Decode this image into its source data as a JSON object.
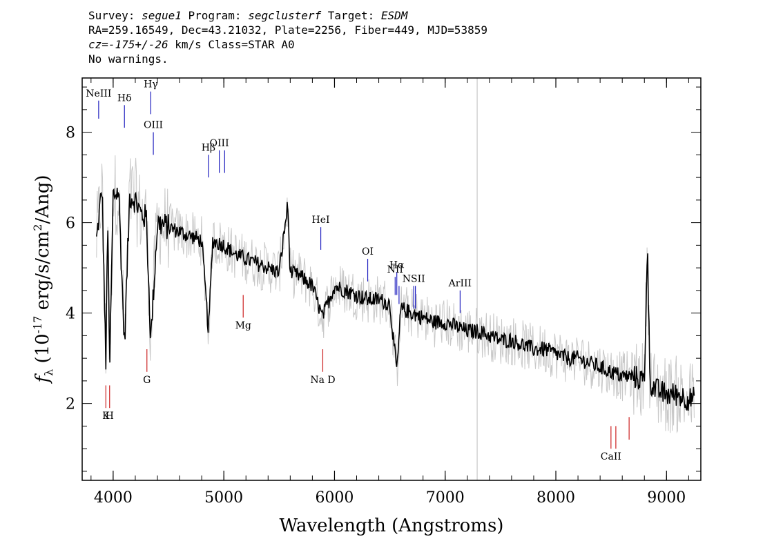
{
  "header": {
    "line1": {
      "survey_label": "Survey: ",
      "survey": "segue1",
      "program_label": " Program: ",
      "program": "segclusterf",
      "target_label": " Target: ",
      "target": "ESDM"
    },
    "line2": "RA=259.16549, Dec=43.21032, Plate=2256, Fiber=449, MJD=53859",
    "line3": {
      "cz": "cz=-175+/-26",
      "rest": " km/s Class=STAR A0"
    },
    "line4": "No warnings."
  },
  "chart_data": {
    "type": "line",
    "xlabel": "Wavelength (Angstroms)",
    "ylabel": "f_λ (10^-17 erg/s/cm^2/Ang)",
    "xlim": [
      3720,
      9310
    ],
    "ylim": [
      0.3,
      9.2
    ],
    "xticks": [
      4000,
      5000,
      6000,
      7000,
      8000,
      9000
    ],
    "yticks": [
      2,
      4,
      6,
      8
    ],
    "colors": {
      "flux": "#000000",
      "error_band": "#c8c8c8",
      "emission": "#1f1fbf",
      "absorption": "#cc2222",
      "sky_line": "#bbbbbb"
    },
    "series": [
      {
        "name": "flux",
        "x": [
          3850,
          3875,
          3900,
          3934,
          3950,
          3968,
          4000,
          4050,
          4102,
          4150,
          4200,
          4250,
          4300,
          4340,
          4400,
          4500,
          4600,
          4700,
          4800,
          4861,
          4900,
          5000,
          5100,
          5200,
          5300,
          5400,
          5500,
          5577,
          5600,
          5700,
          5800,
          5890,
          6000,
          6100,
          6200,
          6300,
          6400,
          6500,
          6563,
          6600,
          6700,
          6800,
          6900,
          7000,
          7100,
          7200,
          7300,
          7400,
          7500,
          7600,
          7700,
          7800,
          7900,
          8000,
          8100,
          8200,
          8300,
          8400,
          8500,
          8600,
          8700,
          8800,
          8827,
          8850,
          8900,
          9000,
          9100,
          9200,
          9250
        ],
        "y": [
          5.6,
          6.2,
          6.8,
          2.8,
          6.3,
          2.7,
          6.6,
          6.7,
          3.3,
          6.6,
          6.5,
          6.2,
          6.1,
          3.4,
          6.0,
          5.9,
          5.8,
          5.7,
          5.6,
          3.6,
          5.6,
          5.5,
          5.3,
          5.2,
          5.1,
          5.0,
          4.9,
          6.4,
          4.9,
          4.8,
          4.6,
          3.9,
          4.6,
          4.5,
          4.4,
          4.3,
          4.3,
          4.2,
          2.7,
          4.1,
          4.0,
          3.9,
          3.8,
          3.8,
          3.7,
          3.6,
          3.6,
          3.5,
          3.4,
          3.4,
          3.3,
          3.2,
          3.2,
          3.1,
          3.0,
          3.0,
          2.9,
          2.8,
          2.7,
          2.6,
          2.6,
          2.5,
          5.6,
          2.5,
          2.3,
          2.2,
          2.2,
          2.1,
          2.1
        ]
      }
    ],
    "sky_line_x": 7289,
    "emission_lines": [
      {
        "label": "NeIII",
        "x": 3869,
        "y_top": 8.7,
        "y_bottom": 8.3
      },
      {
        "label": "Hδ",
        "x": 4102,
        "y_top": 8.6,
        "y_bottom": 8.1
      },
      {
        "label": "Hγ",
        "x": 4340,
        "y_top": 8.9,
        "y_bottom": 8.4
      },
      {
        "label": "OIII",
        "x": 4363,
        "y_top": 8.0,
        "y_bottom": 7.5
      },
      {
        "label": "Hβ",
        "x": 4861,
        "y_top": 7.5,
        "y_bottom": 7.0
      },
      {
        "label": "OIII",
        "x": 4959,
        "y_top": 7.6,
        "y_bottom": 7.1
      },
      {
        "label": "",
        "x": 5007,
        "y_top": 7.6,
        "y_bottom": 7.1
      },
      {
        "label": "HeI",
        "x": 5876,
        "y_top": 5.9,
        "y_bottom": 5.4
      },
      {
        "label": "OI",
        "x": 6300,
        "y_top": 5.2,
        "y_bottom": 4.7
      },
      {
        "label": "NII",
        "x": 6548,
        "y_top": 4.8,
        "y_bottom": 4.4
      },
      {
        "label": "Hα",
        "x": 6563,
        "y_top": 4.9,
        "y_bottom": 4.4
      },
      {
        "label": "",
        "x": 6583,
        "y_top": 4.6,
        "y_bottom": 4.2
      },
      {
        "label": "NSII",
        "x": 6716,
        "y_top": 4.6,
        "y_bottom": 4.1
      },
      {
        "label": "",
        "x": 6731,
        "y_top": 4.6,
        "y_bottom": 4.1
      },
      {
        "label": "ArIII",
        "x": 7135,
        "y_top": 4.5,
        "y_bottom": 4.0
      }
    ],
    "absorption_lines": [
      {
        "label": "K",
        "x": 3934,
        "y_top": 2.4,
        "y_bottom": 1.9
      },
      {
        "label": "H",
        "x": 3968,
        "y_top": 2.4,
        "y_bottom": 1.9
      },
      {
        "label": "G",
        "x": 4305,
        "y_top": 3.2,
        "y_bottom": 2.7
      },
      {
        "label": "Mg",
        "x": 5175,
        "y_top": 4.4,
        "y_bottom": 3.9
      },
      {
        "label": "Na D",
        "x": 5894,
        "y_top": 3.2,
        "y_bottom": 2.7
      },
      {
        "label": "CaII",
        "x": 8498,
        "y_top": 1.5,
        "y_bottom": 1.0
      },
      {
        "label": "",
        "x": 8542,
        "y_top": 1.5,
        "y_bottom": 1.0
      },
      {
        "label": "",
        "x": 8662,
        "y_top": 1.7,
        "y_bottom": 1.2
      }
    ]
  }
}
